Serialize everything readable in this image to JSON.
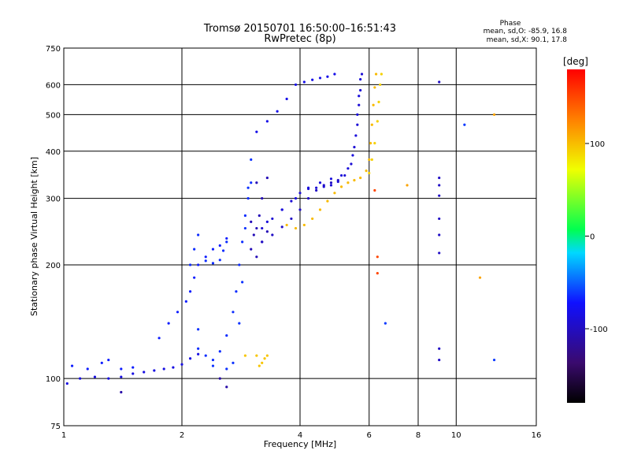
{
  "chart_data": {
    "type": "scatter",
    "title": "Tromsø 20150701 16:50:00–16:51:43",
    "subtitle": "RwPretec (8p)",
    "phase_box": {
      "heading": "Phase",
      "line_o": "mean, sd,O: -85.9, 16.8",
      "line_x": "mean, sd,X:  90.1, 17.8"
    },
    "xlabel": "Frequency [MHz]",
    "ylabel": "Stationary phase Virtual Height [km]",
    "xscale": "log",
    "yscale": "log",
    "xlim": [
      1,
      16
    ],
    "ylim": [
      75,
      750
    ],
    "xticks": [
      1,
      2,
      4,
      6,
      8,
      10,
      16
    ],
    "yticks": [
      75,
      100,
      200,
      300,
      400,
      500,
      600,
      750
    ],
    "grid": true,
    "colorbar": {
      "label": "[deg]",
      "range": [
        -180,
        180
      ],
      "ticks": [
        100,
        0,
        -100
      ]
    },
    "series": [
      {
        "phase": -110,
        "points": [
          [
            1.02,
            97
          ],
          [
            1.1,
            100
          ],
          [
            1.2,
            101
          ],
          [
            1.3,
            100
          ],
          [
            1.4,
            101
          ],
          [
            1.5,
            103
          ],
          [
            1.6,
            104
          ],
          [
            1.7,
            105
          ],
          [
            1.8,
            106
          ],
          [
            1.9,
            107
          ],
          [
            2.0,
            109
          ],
          [
            2.1,
            113
          ],
          [
            2.2,
            116
          ]
        ]
      },
      {
        "phase": -130,
        "points": [
          [
            1.4,
            92
          ],
          [
            2.6,
            95
          ],
          [
            2.5,
            100
          ]
        ]
      },
      {
        "phase": -95,
        "points": [
          [
            1.05,
            108
          ],
          [
            1.15,
            106
          ],
          [
            1.25,
            110
          ],
          [
            1.3,
            112
          ],
          [
            1.4,
            106
          ],
          [
            1.5,
            107
          ]
        ]
      },
      {
        "phase": -95,
        "points": [
          [
            1.75,
            128
          ],
          [
            1.85,
            140
          ],
          [
            1.95,
            150
          ],
          [
            2.05,
            160
          ],
          [
            2.1,
            170
          ],
          [
            2.15,
            185
          ],
          [
            2.2,
            200
          ],
          [
            2.3,
            210
          ],
          [
            2.4,
            220
          ],
          [
            2.5,
            225
          ],
          [
            2.6,
            235
          ]
        ]
      },
      {
        "phase": -90,
        "points": [
          [
            2.1,
            200
          ],
          [
            2.15,
            220
          ],
          [
            2.2,
            240
          ],
          [
            2.3,
            205
          ],
          [
            2.4,
            202
          ],
          [
            2.5,
            206
          ],
          [
            2.55,
            218
          ],
          [
            2.6,
            230
          ]
        ]
      },
      {
        "phase": -90,
        "points": [
          [
            2.2,
            120
          ],
          [
            2.3,
            115
          ],
          [
            2.4,
            112
          ],
          [
            2.5,
            118
          ],
          [
            2.6,
            130
          ],
          [
            2.7,
            150
          ],
          [
            2.75,
            170
          ],
          [
            2.8,
            200
          ],
          [
            2.85,
            230
          ],
          [
            2.9,
            270
          ],
          [
            2.95,
            300
          ],
          [
            3.0,
            330
          ]
        ]
      },
      {
        "phase": -88,
        "points": [
          [
            2.2,
            135
          ],
          [
            2.4,
            108
          ],
          [
            2.6,
            106
          ],
          [
            2.7,
            110
          ],
          [
            2.8,
            140
          ],
          [
            2.85,
            180
          ],
          [
            2.9,
            250
          ],
          [
            2.95,
            320
          ],
          [
            3.0,
            380
          ]
        ]
      },
      {
        "phase": -125,
        "points": [
          [
            3.0,
            220
          ],
          [
            3.05,
            240
          ],
          [
            3.1,
            250
          ],
          [
            3.15,
            270
          ],
          [
            3.2,
            300
          ],
          [
            3.3,
            340
          ],
          [
            3.0,
            260
          ],
          [
            3.1,
            210
          ],
          [
            3.2,
            230
          ],
          [
            3.3,
            245
          ],
          [
            3.1,
            330
          ]
        ]
      },
      {
        "phase": -120,
        "points": [
          [
            3.2,
            230
          ],
          [
            3.4,
            240
          ],
          [
            3.6,
            252
          ],
          [
            3.8,
            265
          ],
          [
            4.0,
            280
          ],
          [
            4.2,
            300
          ],
          [
            4.4,
            315
          ],
          [
            4.6,
            325
          ],
          [
            4.8,
            330
          ],
          [
            5.0,
            335
          ]
        ]
      },
      {
        "phase": -115,
        "points": [
          [
            3.2,
            250
          ],
          [
            3.4,
            265
          ],
          [
            3.6,
            280
          ],
          [
            3.8,
            295
          ],
          [
            4.0,
            310
          ],
          [
            4.2,
            318
          ],
          [
            4.4,
            320
          ],
          [
            4.6,
            322
          ],
          [
            4.8,
            325
          ],
          [
            5.0,
            332
          ],
          [
            5.2,
            345
          ],
          [
            5.4,
            370
          ],
          [
            5.5,
            410
          ],
          [
            5.6,
            470
          ],
          [
            5.65,
            530
          ],
          [
            5.7,
            580
          ],
          [
            5.75,
            640
          ]
        ]
      },
      {
        "phase": -112,
        "points": [
          [
            3.3,
            260
          ],
          [
            3.6,
            280
          ],
          [
            3.9,
            300
          ],
          [
            4.2,
            320
          ],
          [
            4.5,
            330
          ],
          [
            4.8,
            338
          ],
          [
            5.1,
            345
          ],
          [
            5.3,
            360
          ],
          [
            5.45,
            390
          ],
          [
            5.55,
            440
          ],
          [
            5.6,
            500
          ],
          [
            5.65,
            560
          ],
          [
            5.7,
            620
          ]
        ]
      },
      {
        "phase": -108,
        "points": [
          [
            3.1,
            450
          ],
          [
            3.3,
            480
          ],
          [
            3.5,
            510
          ],
          [
            3.7,
            550
          ],
          [
            3.9,
            600
          ],
          [
            4.1,
            610
          ],
          [
            4.3,
            618
          ],
          [
            4.5,
            625
          ],
          [
            4.7,
            630
          ],
          [
            4.9,
            640
          ]
        ]
      },
      {
        "phase": 100,
        "points": [
          [
            3.7,
            255
          ],
          [
            3.9,
            250
          ],
          [
            4.1,
            255
          ],
          [
            4.3,
            265
          ],
          [
            4.5,
            280
          ],
          [
            4.7,
            295
          ],
          [
            4.9,
            310
          ],
          [
            5.1,
            322
          ],
          [
            5.3,
            330
          ],
          [
            5.5,
            335
          ],
          [
            5.7,
            340
          ],
          [
            5.9,
            355
          ],
          [
            6.0,
            380
          ],
          [
            6.05,
            420
          ],
          [
            6.1,
            470
          ],
          [
            6.15,
            530
          ],
          [
            6.2,
            590
          ],
          [
            6.25,
            640
          ]
        ]
      },
      {
        "phase": 90,
        "points": [
          [
            6.0,
            350
          ],
          [
            6.1,
            380
          ],
          [
            6.2,
            420
          ],
          [
            6.3,
            480
          ],
          [
            6.35,
            540
          ],
          [
            6.4,
            600
          ],
          [
            6.45,
            640
          ]
        ]
      },
      {
        "phase": 95,
        "points": [
          [
            3.2,
            110
          ],
          [
            3.25,
            113
          ],
          [
            3.3,
            115
          ],
          [
            3.15,
            108
          ],
          [
            3.1,
            115
          ],
          [
            2.9,
            115
          ]
        ]
      },
      {
        "phase": -120,
        "points": [
          [
            9.05,
            610
          ],
          [
            9.05,
            340
          ],
          [
            9.05,
            325
          ],
          [
            9.05,
            305
          ],
          [
            9.05,
            265
          ],
          [
            9.05,
            240
          ],
          [
            9.05,
            215
          ],
          [
            9.05,
            120
          ],
          [
            9.05,
            112
          ]
        ]
      },
      {
        "phase": -85,
        "points": [
          [
            6.6,
            140
          ],
          [
            12.5,
            112
          ],
          [
            10.5,
            470
          ]
        ]
      },
      {
        "phase": 110,
        "points": [
          [
            7.5,
            325
          ],
          [
            11.5,
            185
          ],
          [
            12.5,
            500
          ]
        ]
      },
      {
        "phase": 150,
        "points": [
          [
            6.3,
            210
          ],
          [
            6.3,
            190
          ],
          [
            6.2,
            315
          ]
        ]
      }
    ]
  }
}
